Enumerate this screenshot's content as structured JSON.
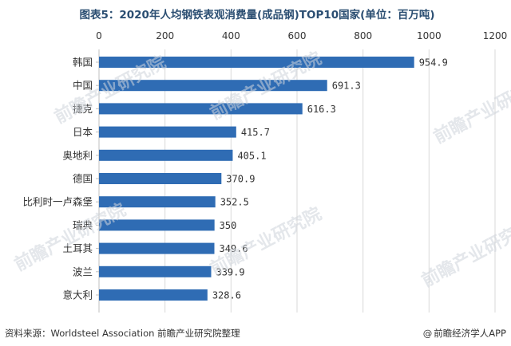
{
  "chart_title": "图表5：2020年人均钢铁表观消费量(成品钢)TOP10国家(单位：百万吨)",
  "footer": {
    "source": "资料来源：Worldsteel Association 前瞻产业研究院整理",
    "credit": "前瞻经济学人APP",
    "credit_icon": "at-sign-icon"
  },
  "watermark_text": "前瞻产业研究院",
  "colors": {
    "bar": "#2f6cb4",
    "title": "#2b4e72",
    "grid": "#d9d9d9",
    "text": "#333333"
  },
  "chart_data": {
    "type": "bar",
    "orientation": "horizontal",
    "title": "图表5：2020年人均钢铁表观消费量(成品钢)TOP10国家(单位：百万吨)",
    "xlabel": "",
    "ylabel": "",
    "xlim": [
      0,
      1200
    ],
    "x_ticks": [
      0,
      200,
      400,
      600,
      800,
      1000,
      1200
    ],
    "x_axis_position": "top",
    "grid": true,
    "categories": [
      "韩国",
      "中国",
      "捷克",
      "日本",
      "奥地利",
      "德国",
      "比利时一卢森堡",
      "瑞典",
      "土耳其",
      "波兰",
      "意大利"
    ],
    "values": [
      954.9,
      691.3,
      616.3,
      415.7,
      405.1,
      370.9,
      352.5,
      350,
      349.6,
      339.9,
      328.6
    ],
    "value_labels": [
      "954.9",
      "691.3",
      "616.3",
      "415.7",
      "405.1",
      "370.9",
      "352.5",
      "350",
      "349.6",
      "339.9",
      "328.6"
    ]
  }
}
